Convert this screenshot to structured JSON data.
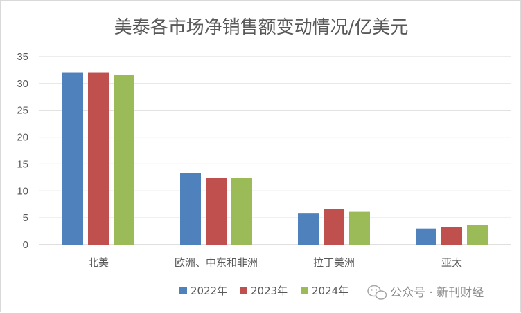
{
  "chart_data": {
    "type": "bar",
    "title": "美泰各市场净销售额变动情况/亿美元",
    "xlabel": "",
    "ylabel": "",
    "categories": [
      "北美",
      "欧洲、中东和非洲",
      "拉丁美洲",
      "亚太"
    ],
    "series": [
      {
        "name": "2022年",
        "values": [
          32.1,
          13.3,
          5.9,
          3.0
        ],
        "color": "#4f81bd"
      },
      {
        "name": "2023年",
        "values": [
          32.1,
          12.4,
          6.6,
          3.3
        ],
        "color": "#c0504d"
      },
      {
        "name": "2024年",
        "values": [
          31.6,
          12.4,
          6.1,
          3.7
        ],
        "color": "#9bbb59"
      }
    ],
    "ylim": [
      0,
      35
    ],
    "yticks": [
      0,
      5,
      10,
      15,
      20,
      25,
      30,
      35
    ],
    "grid": true,
    "legend_position": "bottom"
  },
  "watermark": {
    "icon": "wechat-icon",
    "text": "公众号 · 新刊财经"
  }
}
